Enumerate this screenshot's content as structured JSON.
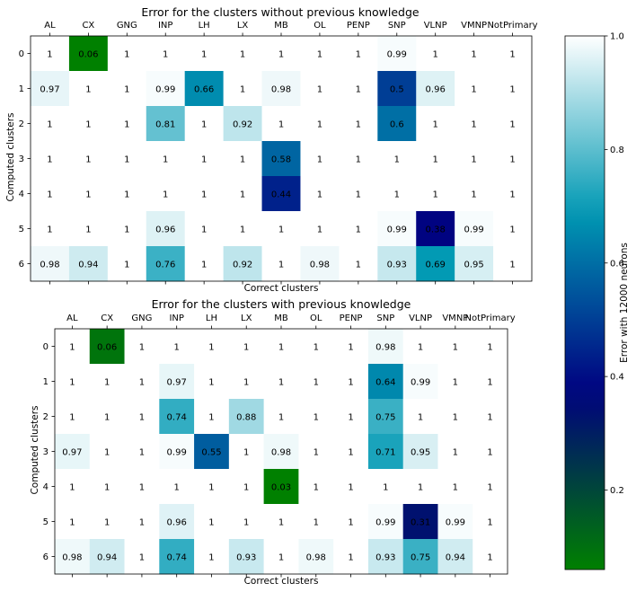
{
  "colormap": {
    "name": "ocean_r",
    "stops": [
      {
        "v": 0.0,
        "c": "#ffffff"
      },
      {
        "v": 0.333,
        "c": "#0099b3"
      },
      {
        "v": 0.667,
        "c": "#000080"
      },
      {
        "v": 1.0,
        "c": "#008000"
      }
    ]
  },
  "chart_data": [
    {
      "type": "heatmap",
      "title": "Error for the clusters without previous knowledge",
      "xlabel": "Correct clusters",
      "ylabel": "Computed clusters",
      "x_categories": [
        "AL",
        "CX",
        "GNG",
        "INP",
        "LH",
        "LX",
        "MB",
        "OL",
        "PENP",
        "SNP",
        "VLNP",
        "VMNP",
        "NotPrimary"
      ],
      "y_categories": [
        "0",
        "1",
        "2",
        "3",
        "4",
        "5",
        "6"
      ],
      "values": [
        [
          1.0,
          0.06,
          1.0,
          1.0,
          1.0,
          1.0,
          1.0,
          1.0,
          1.0,
          0.99,
          1.0,
          1.0,
          1.0
        ],
        [
          0.97,
          1.0,
          1.0,
          0.99,
          0.66,
          1.0,
          0.98,
          1.0,
          1.0,
          0.5,
          0.96,
          1.0,
          1.0
        ],
        [
          1.0,
          1.0,
          1.0,
          0.81,
          1.0,
          0.92,
          1.0,
          1.0,
          1.0,
          0.6,
          1.0,
          1.0,
          1.0
        ],
        [
          1.0,
          1.0,
          1.0,
          1.0,
          1.0,
          1.0,
          0.58,
          1.0,
          1.0,
          1.0,
          1.0,
          1.0,
          1.0
        ],
        [
          1.0,
          1.0,
          1.0,
          1.0,
          1.0,
          1.0,
          0.44,
          1.0,
          1.0,
          1.0,
          1.0,
          1.0,
          1.0
        ],
        [
          1.0,
          1.0,
          1.0,
          0.96,
          1.0,
          1.0,
          1.0,
          1.0,
          1.0,
          0.99,
          0.38,
          0.99,
          1.0
        ],
        [
          0.98,
          0.94,
          1.0,
          0.76,
          1.0,
          0.92,
          1.0,
          0.98,
          1.0,
          0.93,
          0.69,
          0.95,
          1.0
        ]
      ],
      "color_range": [
        0.06,
        1.0
      ]
    },
    {
      "type": "heatmap",
      "title": "Error for the clusters with previous knowledge",
      "xlabel": "Correct clusters",
      "ylabel": "Computed clusters",
      "x_categories": [
        "AL",
        "CX",
        "GNG",
        "INP",
        "LH",
        "LX",
        "MB",
        "OL",
        "PENP",
        "SNP",
        "VLNP",
        "VMNP",
        "NotPrimary"
      ],
      "y_categories": [
        "0",
        "1",
        "2",
        "3",
        "4",
        "5",
        "6"
      ],
      "values": [
        [
          1.0,
          0.06,
          1.0,
          1.0,
          1.0,
          1.0,
          1.0,
          1.0,
          1.0,
          0.98,
          1.0,
          1.0,
          1.0
        ],
        [
          1.0,
          1.0,
          1.0,
          0.97,
          1.0,
          1.0,
          1.0,
          1.0,
          1.0,
          0.64,
          0.99,
          1.0,
          1.0
        ],
        [
          1.0,
          1.0,
          1.0,
          0.74,
          1.0,
          0.88,
          1.0,
          1.0,
          1.0,
          0.75,
          1.0,
          1.0,
          1.0
        ],
        [
          0.97,
          1.0,
          1.0,
          0.99,
          0.55,
          1.0,
          0.98,
          1.0,
          1.0,
          0.71,
          0.95,
          1.0,
          1.0
        ],
        [
          1.0,
          1.0,
          1.0,
          1.0,
          1.0,
          1.0,
          0.03,
          1.0,
          1.0,
          1.0,
          1.0,
          1.0,
          1.0
        ],
        [
          1.0,
          1.0,
          1.0,
          0.96,
          1.0,
          1.0,
          1.0,
          1.0,
          1.0,
          0.99,
          0.31,
          0.99,
          1.0
        ],
        [
          0.98,
          0.94,
          1.0,
          0.74,
          1.0,
          0.93,
          1.0,
          0.98,
          1.0,
          0.93,
          0.75,
          0.94,
          1.0
        ]
      ],
      "color_range": [
        0.03,
        1.0
      ]
    },
    {
      "type": "colorbar",
      "label": "Error with 12000 neurons",
      "ticks": [
        "0.2",
        "0.4",
        "0.6",
        "0.8",
        "1.0"
      ],
      "tick_values": [
        0.2,
        0.4,
        0.6,
        0.8,
        1.0
      ],
      "range": [
        0.06,
        1.0
      ]
    }
  ]
}
